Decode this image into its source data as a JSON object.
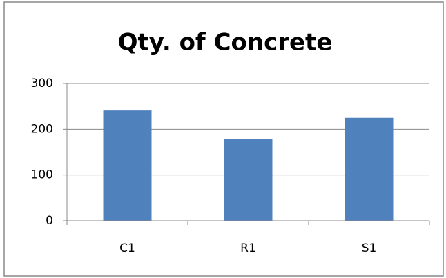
{
  "chart_data": {
    "type": "bar",
    "title": "Qty. of Concrete",
    "categories": [
      "C1",
      "R1",
      "S1"
    ],
    "values": [
      241,
      179,
      225
    ],
    "color": "#4f81bd",
    "ylim": [
      0,
      300
    ],
    "yticks": [
      0,
      100,
      200,
      300
    ],
    "grid": true
  }
}
